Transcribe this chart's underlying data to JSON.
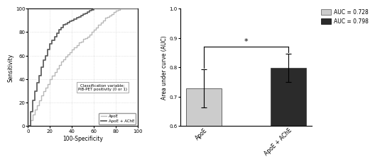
{
  "roc_apoe": {
    "x": [
      0,
      2,
      4,
      6,
      8,
      10,
      12,
      14,
      16,
      18,
      20,
      22,
      24,
      26,
      28,
      30,
      32,
      34,
      36,
      38,
      40,
      42,
      44,
      46,
      48,
      50,
      52,
      54,
      56,
      58,
      60,
      62,
      64,
      66,
      68,
      70,
      72,
      74,
      76,
      78,
      80,
      82,
      84,
      86,
      88,
      90,
      92,
      94,
      96,
      98,
      100
    ],
    "y": [
      0,
      5,
      10,
      14,
      18,
      22,
      26,
      30,
      33,
      36,
      40,
      43,
      46,
      49,
      52,
      55,
      57,
      59,
      61,
      63,
      65,
      67,
      69,
      71,
      72,
      74,
      75,
      76,
      78,
      80,
      82,
      84,
      86,
      88,
      90,
      92,
      93,
      94,
      95,
      97,
      98,
      99,
      100,
      100,
      100,
      100,
      100,
      100,
      100,
      100,
      100
    ]
  },
  "roc_apoe_ache": {
    "x": [
      0,
      2,
      4,
      6,
      8,
      10,
      12,
      14,
      16,
      18,
      20,
      22,
      24,
      26,
      28,
      30,
      32,
      34,
      36,
      38,
      40,
      42,
      44,
      46,
      48,
      50,
      52,
      54,
      56,
      58,
      60,
      62,
      64,
      66,
      68,
      70,
      72,
      74,
      76,
      78,
      80,
      82,
      84,
      86,
      88,
      90,
      92,
      94,
      96,
      98,
      100
    ],
    "y": [
      0,
      12,
      22,
      30,
      37,
      43,
      50,
      56,
      60,
      65,
      70,
      73,
      76,
      79,
      82,
      84,
      86,
      87,
      88,
      89,
      90,
      91,
      92,
      93,
      94,
      95,
      96,
      97,
      98,
      99,
      100,
      100,
      100,
      100,
      100,
      100,
      100,
      100,
      100,
      100,
      100,
      100,
      100,
      100,
      100,
      100,
      100,
      100,
      100,
      100,
      100
    ]
  },
  "bar_categories": [
    "ApoE",
    "ApoE + AChE"
  ],
  "bar_values": [
    0.728,
    0.798
  ],
  "bar_errors": [
    0.065,
    0.048
  ],
  "bar_colors": [
    "#cccccc",
    "#2b2b2b"
  ],
  "ylim_bar": [
    0.6,
    1.0
  ],
  "yticks_bar": [
    0.6,
    0.7,
    0.8,
    0.9,
    1.0
  ],
  "ylabel_bar": "Area under curve (AUC)",
  "legend_labels": [
    "AUC = 0.728",
    "AUC = 0.798"
  ],
  "legend_colors": [
    "#cccccc",
    "#2b2b2b"
  ],
  "annotation_text": "Classification variable:\nPiB-PET positivity (0 or 1)",
  "roc_legend": [
    "ApoE",
    "ApoE + AChE"
  ],
  "roc_colors": [
    "#b8b8b8",
    "#606060"
  ],
  "xlabel_roc": "100-Specificity",
  "ylabel_roc": "Sensitivity",
  "xticks_roc": [
    0,
    20,
    40,
    60,
    80,
    100
  ],
  "yticks_roc": [
    0,
    20,
    40,
    60,
    80,
    100
  ]
}
